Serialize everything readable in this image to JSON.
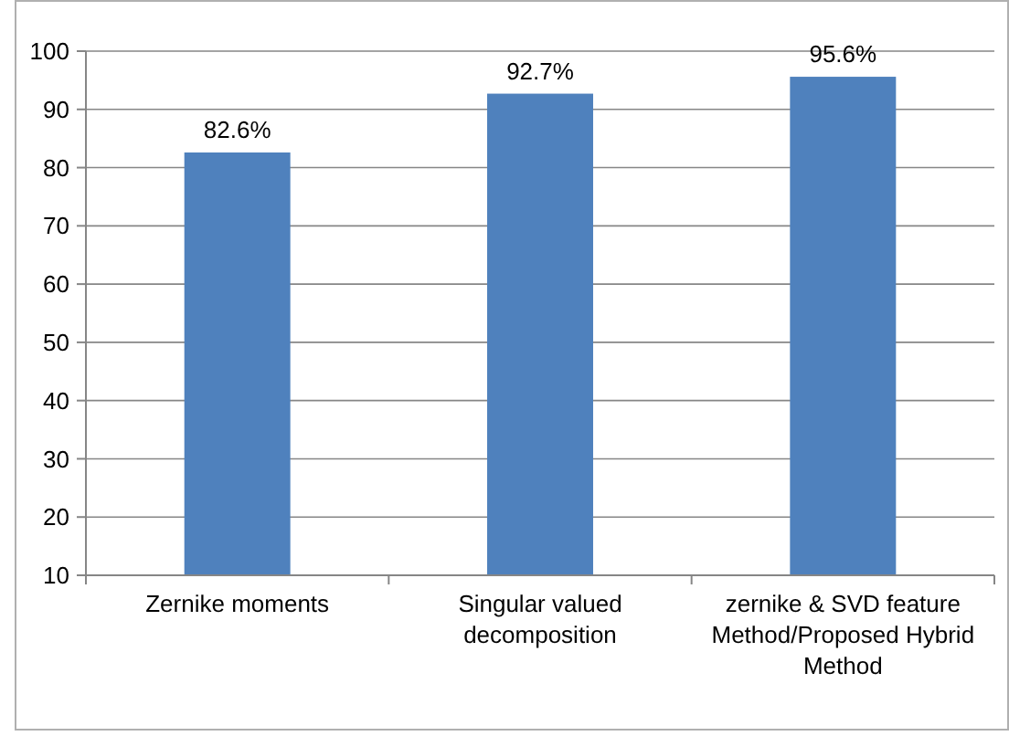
{
  "chart_data": {
    "type": "bar",
    "categories": [
      "Zernike moments",
      "Singular valued decomposition",
      "zernike & SVD feature Method/Proposed Hybrid Method"
    ],
    "values": [
      82.6,
      92.7,
      95.6
    ],
    "value_labels": [
      "82.6%",
      "92.7%",
      "95.6%"
    ],
    "color": "#4f81bd",
    "ylim": [
      10,
      100
    ],
    "yticks": [
      10,
      20,
      30,
      40,
      50,
      60,
      70,
      80,
      90,
      100
    ],
    "grid": "y"
  }
}
